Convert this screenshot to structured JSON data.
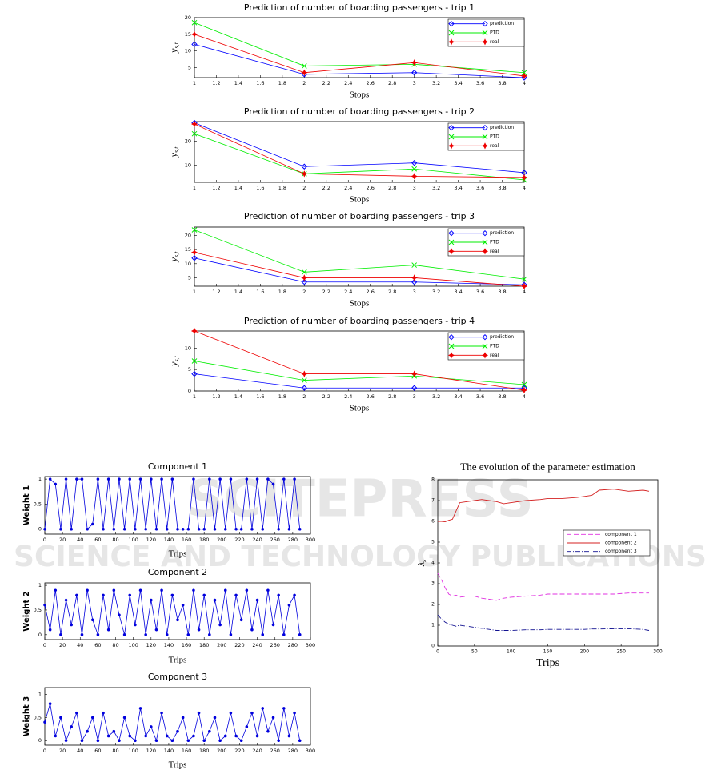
{
  "watermark": {
    "line1": "SCITEPRESS",
    "line2": "SCIENCE AND TECHNOLOGY PUBLICATIONS"
  },
  "chart_data": [
    {
      "type": "line",
      "title": "Prediction of number of boarding passengers - trip 1",
      "xlabel": "Stops",
      "ylabel": {
        "main": "y",
        "sub": "s,t"
      },
      "x": [
        1,
        2,
        3,
        4
      ],
      "xlim": [
        1,
        4
      ],
      "xticks": [
        1,
        1.2,
        1.4,
        1.6,
        1.8,
        2,
        2.2,
        2.4,
        2.6,
        2.8,
        3,
        3.2,
        3.4,
        3.6,
        3.8,
        4
      ],
      "ylim": [
        2,
        20
      ],
      "yticks": [
        5,
        10,
        15,
        20
      ],
      "legend": "upper right",
      "series": [
        {
          "name": "prediction",
          "color": "#0000ff",
          "marker": "diamond",
          "values": [
            12,
            3,
            3.5,
            2
          ]
        },
        {
          "name": "PTD",
          "color": "#00ee00",
          "marker": "x",
          "values": [
            18.5,
            5.5,
            6,
            3.5
          ]
        },
        {
          "name": "real",
          "color": "#ee0000",
          "marker": "star",
          "values": [
            15,
            3.5,
            6.5,
            2.5
          ]
        }
      ]
    },
    {
      "type": "line",
      "title": "Prediction of number of boarding passengers - trip 2",
      "xlabel": "Stops",
      "ylabel": {
        "main": "y",
        "sub": "s,t"
      },
      "x": [
        1,
        2,
        3,
        4
      ],
      "xlim": [
        1,
        4
      ],
      "xticks": [
        1,
        1.2,
        1.4,
        1.6,
        1.8,
        2,
        2.2,
        2.4,
        2.6,
        2.8,
        3,
        3.2,
        3.4,
        3.6,
        3.8,
        4
      ],
      "ylim": [
        3,
        28
      ],
      "yticks": [
        10,
        20
      ],
      "legend": "upper right",
      "series": [
        {
          "name": "prediction",
          "color": "#0000ff",
          "marker": "diamond",
          "values": [
            27.5,
            9.5,
            11,
            7
          ]
        },
        {
          "name": "PTD",
          "color": "#00ee00",
          "marker": "x",
          "values": [
            23,
            6.5,
            8.5,
            4
          ]
        },
        {
          "name": "real",
          "color": "#ee0000",
          "marker": "star",
          "values": [
            27,
            6.5,
            5.5,
            5
          ]
        }
      ]
    },
    {
      "type": "line",
      "title": "Prediction of number of boarding passengers - trip 3",
      "xlabel": "Stops",
      "ylabel": {
        "main": "y",
        "sub": "s,t"
      },
      "x": [
        1,
        2,
        3,
        4
      ],
      "xlim": [
        1,
        4
      ],
      "xticks": [
        1,
        1.2,
        1.4,
        1.6,
        1.8,
        2,
        2.2,
        2.4,
        2.6,
        2.8,
        3,
        3.2,
        3.4,
        3.6,
        3.8,
        4
      ],
      "ylim": [
        2,
        23
      ],
      "yticks": [
        5,
        10,
        15,
        20
      ],
      "legend": "upper right",
      "series": [
        {
          "name": "prediction",
          "color": "#0000ff",
          "marker": "diamond",
          "values": [
            12,
            3.5,
            3.5,
            2.5
          ]
        },
        {
          "name": "PTD",
          "color": "#00ee00",
          "marker": "x",
          "values": [
            22,
            7,
            9.5,
            4.5
          ]
        },
        {
          "name": "real",
          "color": "#ee0000",
          "marker": "star",
          "values": [
            14,
            5,
            5,
            2
          ]
        }
      ]
    },
    {
      "type": "line",
      "title": "Prediction of number of boarding passengers - trip 4",
      "xlabel": "Stops",
      "ylabel": {
        "main": "y",
        "sub": "s,t"
      },
      "x": [
        1,
        2,
        3,
        4
      ],
      "xlim": [
        1,
        4
      ],
      "xticks": [
        1,
        1.2,
        1.4,
        1.6,
        1.8,
        2,
        2.2,
        2.4,
        2.6,
        2.8,
        3,
        3.2,
        3.4,
        3.6,
        3.8,
        4
      ],
      "ylim": [
        0,
        14
      ],
      "yticks": [
        0,
        5,
        10
      ],
      "legend": "upper right",
      "series": [
        {
          "name": "prediction",
          "color": "#0000ff",
          "marker": "diamond",
          "values": [
            4,
            0.7,
            0.7,
            0.7
          ]
        },
        {
          "name": "PTD",
          "color": "#00ee00",
          "marker": "x",
          "values": [
            7,
            2.5,
            3.5,
            1.5
          ]
        },
        {
          "name": "real",
          "color": "#ee0000",
          "marker": "star",
          "values": [
            14,
            4,
            4,
            0.2
          ]
        }
      ]
    },
    {
      "type": "line",
      "title": "Component 1",
      "xlabel": "Trips",
      "ylabel": "Weight 1",
      "x": [
        0,
        6,
        12,
        18,
        24,
        30,
        36,
        42,
        48,
        54,
        60,
        66,
        72,
        78,
        84,
        90,
        96,
        102,
        108,
        114,
        120,
        126,
        132,
        138,
        144,
        150,
        156,
        162,
        168,
        174,
        180,
        186,
        192,
        198,
        204,
        210,
        216,
        222,
        228,
        234,
        240,
        246,
        252,
        258,
        264,
        270,
        276,
        282,
        288
      ],
      "xlim": [
        0,
        300
      ],
      "xticks": [
        0,
        20,
        40,
        60,
        80,
        100,
        120,
        140,
        160,
        180,
        200,
        220,
        240,
        260,
        280,
        300
      ],
      "ylim": [
        -0.1,
        1.05
      ],
      "yticks": [
        0,
        0.5,
        1
      ],
      "series": [
        {
          "color": "#0000dd",
          "marker": "dot",
          "values": [
            0,
            1,
            0.9,
            0,
            1,
            0,
            1,
            1,
            0,
            0.1,
            1,
            0,
            1,
            0,
            1,
            0,
            1,
            0,
            1,
            0,
            1,
            0,
            1,
            0,
            1,
            0,
            0,
            0,
            1,
            0,
            0,
            1,
            0,
            1,
            0,
            1,
            0,
            0,
            1,
            0,
            1,
            0,
            1,
            0.9,
            0,
            1,
            0,
            1,
            0
          ]
        }
      ]
    },
    {
      "type": "line",
      "title": "Component 2",
      "xlabel": "Trips",
      "ylabel": "Weight 2",
      "x": [
        0,
        6,
        12,
        18,
        24,
        30,
        36,
        42,
        48,
        54,
        60,
        66,
        72,
        78,
        84,
        90,
        96,
        102,
        108,
        114,
        120,
        126,
        132,
        138,
        144,
        150,
        156,
        162,
        168,
        174,
        180,
        186,
        192,
        198,
        204,
        210,
        216,
        222,
        228,
        234,
        240,
        246,
        252,
        258,
        264,
        270,
        276,
        282,
        288
      ],
      "xlim": [
        0,
        300
      ],
      "xticks": [
        0,
        20,
        40,
        60,
        80,
        100,
        120,
        140,
        160,
        180,
        200,
        220,
        240,
        260,
        280,
        300
      ],
      "ylim": [
        -0.1,
        1.05
      ],
      "yticks": [
        0,
        0.5,
        1
      ],
      "series": [
        {
          "color": "#0000dd",
          "marker": "dot",
          "values": [
            0.6,
            0.1,
            0.9,
            0,
            0.7,
            0.2,
            0.8,
            0,
            0.9,
            0.3,
            0,
            0.8,
            0.1,
            0.9,
            0.4,
            0,
            0.8,
            0.2,
            0.9,
            0,
            0.7,
            0.1,
            0.9,
            0,
            0.8,
            0.3,
            0.6,
            0,
            0.9,
            0.1,
            0.8,
            0,
            0.7,
            0.2,
            0.9,
            0,
            0.8,
            0.3,
            0.9,
            0.1,
            0.7,
            0,
            0.9,
            0.2,
            0.8,
            0,
            0.6,
            0.8,
            0
          ]
        }
      ]
    },
    {
      "type": "line",
      "title": "Component 3",
      "xlabel": "Trips",
      "ylabel": "Weight 3",
      "x": [
        0,
        6,
        12,
        18,
        24,
        30,
        36,
        42,
        48,
        54,
        60,
        66,
        72,
        78,
        84,
        90,
        96,
        102,
        108,
        114,
        120,
        126,
        132,
        138,
        144,
        150,
        156,
        162,
        168,
        174,
        180,
        186,
        192,
        198,
        204,
        210,
        216,
        222,
        228,
        234,
        240,
        246,
        252,
        258,
        264,
        270,
        276,
        282,
        288
      ],
      "xlim": [
        0,
        300
      ],
      "xticks": [
        0,
        20,
        40,
        60,
        80,
        100,
        120,
        140,
        160,
        180,
        200,
        220,
        240,
        260,
        280,
        300
      ],
      "ylim": [
        -0.1,
        1.15
      ],
      "yticks": [
        0,
        0.5,
        1
      ],
      "series": [
        {
          "color": "#0000dd",
          "marker": "dot",
          "values": [
            0.4,
            0.8,
            0.1,
            0.5,
            0,
            0.3,
            0.6,
            0,
            0.2,
            0.5,
            0,
            0.6,
            0.1,
            0.2,
            0,
            0.5,
            0.1,
            0,
            0.7,
            0.1,
            0.3,
            0,
            0.6,
            0.1,
            0,
            0.2,
            0.5,
            0,
            0.1,
            0.6,
            0,
            0.2,
            0.5,
            0,
            0.1,
            0.6,
            0.1,
            0,
            0.3,
            0.6,
            0.1,
            0.7,
            0.2,
            0.5,
            0,
            0.7,
            0.1,
            0.6,
            0
          ]
        }
      ]
    },
    {
      "type": "line",
      "title": "The evolution of the parameter estimation",
      "xlabel": "Trips",
      "ylabel": {
        "main": "λ",
        "sub": "s"
      },
      "x": [
        0,
        5,
        10,
        15,
        20,
        25,
        30,
        40,
        50,
        60,
        70,
        80,
        90,
        100,
        120,
        140,
        150,
        170,
        190,
        200,
        210,
        220,
        240,
        260,
        280,
        288
      ],
      "xlim": [
        0,
        300
      ],
      "xticks": [
        0,
        50,
        100,
        150,
        200,
        250,
        300
      ],
      "ylim": [
        0,
        8
      ],
      "yticks": [
        0,
        1,
        2,
        3,
        4,
        5,
        6,
        7,
        8
      ],
      "legend": "center right",
      "series": [
        {
          "name": "component 1",
          "color": "#e030e0",
          "dash": "dashed",
          "values": [
            3.5,
            3.2,
            2.8,
            2.5,
            2.4,
            2.45,
            2.35,
            2.4,
            2.4,
            2.3,
            2.25,
            2.2,
            2.3,
            2.35,
            2.4,
            2.45,
            2.5,
            2.5,
            2.5,
            2.5,
            2.5,
            2.5,
            2.5,
            2.55,
            2.55,
            2.55
          ]
        },
        {
          "name": "component 2",
          "color": "#d42020",
          "dash": "solid",
          "values": [
            6,
            6,
            5.98,
            6.05,
            6.1,
            6.5,
            6.9,
            6.95,
            7.0,
            7.05,
            7.0,
            6.95,
            6.85,
            6.9,
            7.0,
            7.05,
            7.1,
            7.1,
            7.15,
            7.2,
            7.25,
            7.5,
            7.55,
            7.45,
            7.5,
            7.45
          ]
        },
        {
          "name": "component 3",
          "color": "#101090",
          "dash": "dashdot",
          "values": [
            1.5,
            1.3,
            1.15,
            1.05,
            1.0,
            0.95,
            1.0,
            0.95,
            0.9,
            0.85,
            0.8,
            0.75,
            0.75,
            0.75,
            0.78,
            0.78,
            0.8,
            0.8,
            0.8,
            0.8,
            0.82,
            0.82,
            0.83,
            0.83,
            0.8,
            0.75
          ]
        }
      ]
    }
  ]
}
